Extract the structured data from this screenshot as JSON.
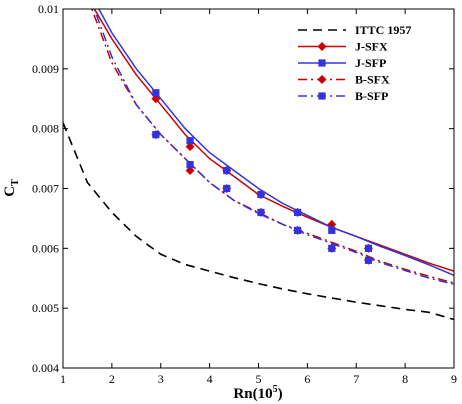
{
  "chart_data": {
    "type": "line",
    "xlabel": "Rn(10",
    "xlabel_sup": "5",
    "xlabel_tail": ")",
    "ylabel": "C",
    "ylabel_sub": "T",
    "xlim": [
      1,
      9
    ],
    "ylim": [
      0.004,
      0.01
    ],
    "xticks": [
      "1",
      "2",
      "3",
      "4",
      "5",
      "6",
      "7",
      "8",
      "9"
    ],
    "yticks": [
      "0.004",
      "0.005",
      "0.006",
      "0.007",
      "0.008",
      "0.009",
      "0.01"
    ],
    "grid": false,
    "legend_position": "top-right",
    "series": [
      {
        "name": "ITTC 1957",
        "color": "#000000",
        "line": "dashed",
        "marker": "none",
        "curve": {
          "x": [
            1.0,
            1.5,
            2.0,
            2.5,
            3.0,
            3.5,
            4.0,
            4.5,
            5.0,
            5.5,
            6.0,
            6.5,
            7.0,
            7.5,
            8.0,
            8.5,
            9.0
          ],
          "y": [
            0.0081,
            0.0071,
            0.0066,
            0.0062,
            0.0059,
            0.00573,
            0.00562,
            0.00551,
            0.00541,
            0.00532,
            0.00524,
            0.00517,
            0.0051,
            0.00504,
            0.00498,
            0.00493,
            0.00481
          ]
        }
      },
      {
        "name": "J-SFX",
        "color": "#cc0000",
        "line": "solid",
        "marker": "diamond",
        "curve": {
          "x": [
            1.5,
            2.0,
            2.5,
            3.0,
            3.5,
            4.0,
            4.5,
            5.0,
            5.5,
            6.0,
            6.5,
            7.0,
            7.5,
            8.0,
            8.5,
            9.0
          ],
          "y": [
            0.0102,
            0.0095,
            0.0089,
            0.0084,
            0.0079,
            0.0075,
            0.0072,
            0.0069,
            0.0067,
            0.00652,
            0.00635,
            0.0062,
            0.00605,
            0.0059,
            0.00575,
            0.00562
          ]
        },
        "points": {
          "x": [
            2.9,
            3.6,
            4.35,
            5.05,
            5.8,
            6.5,
            7.25
          ],
          "y": [
            0.0085,
            0.0077,
            0.0073,
            0.0069,
            0.0066,
            0.0064,
            0.006
          ]
        }
      },
      {
        "name": "J-SFP",
        "color": "#3333dd",
        "line": "solid",
        "marker": "square",
        "curve": {
          "x": [
            1.6,
            2.0,
            2.5,
            3.0,
            3.5,
            4.0,
            4.5,
            5.0,
            5.5,
            6.0,
            6.5,
            7.0,
            7.5,
            8.0,
            8.5,
            9.0
          ],
          "y": [
            0.0102,
            0.0096,
            0.009,
            0.0085,
            0.008,
            0.0076,
            0.0073,
            0.007,
            0.00675,
            0.00655,
            0.00635,
            0.0062,
            0.00603,
            0.00588,
            0.00572,
            0.00555
          ]
        },
        "points": {
          "x": [
            2.9,
            3.6,
            4.35,
            5.05,
            5.8,
            6.5,
            7.25
          ],
          "y": [
            0.0086,
            0.0078,
            0.0073,
            0.0069,
            0.0066,
            0.0063,
            0.006
          ]
        }
      },
      {
        "name": "B-SFX",
        "color": "#cc0000",
        "line": "dashdot",
        "marker": "diamond",
        "curve": {
          "x": [
            1.5,
            2.0,
            2.5,
            3.0,
            3.5,
            4.0,
            4.5,
            5.0,
            5.5,
            6.0,
            6.5,
            7.0,
            7.5,
            8.0,
            8.5,
            9.0
          ],
          "y": [
            0.0102,
            0.0091,
            0.0084,
            0.0079,
            0.0075,
            0.0071,
            0.0068,
            0.0066,
            0.0064,
            0.00625,
            0.0061,
            0.00595,
            0.00578,
            0.00565,
            0.00553,
            0.00542
          ]
        },
        "points": {
          "x": [
            2.9,
            3.6,
            4.35,
            5.05,
            5.8,
            6.5,
            7.25
          ],
          "y": [
            0.0079,
            0.0073,
            0.007,
            0.0066,
            0.0063,
            0.006,
            0.0058
          ]
        }
      },
      {
        "name": "B-SFP",
        "color": "#3333dd",
        "line": "dashdot",
        "marker": "square",
        "curve": {
          "x": [
            1.55,
            2.0,
            2.5,
            3.0,
            3.5,
            4.0,
            4.5,
            5.0,
            5.5,
            6.0,
            6.5,
            7.0,
            7.5,
            8.0,
            8.5,
            9.0
          ],
          "y": [
            0.0102,
            0.0092,
            0.0084,
            0.0079,
            0.0075,
            0.0071,
            0.0068,
            0.00658,
            0.0064,
            0.00623,
            0.00608,
            0.00593,
            0.00576,
            0.00563,
            0.0055,
            0.0054
          ]
        },
        "points": {
          "x": [
            2.9,
            3.6,
            4.35,
            5.05,
            5.8,
            6.5,
            7.25
          ],
          "y": [
            0.0079,
            0.0074,
            0.007,
            0.0066,
            0.0063,
            0.006,
            0.0058
          ]
        }
      }
    ]
  }
}
